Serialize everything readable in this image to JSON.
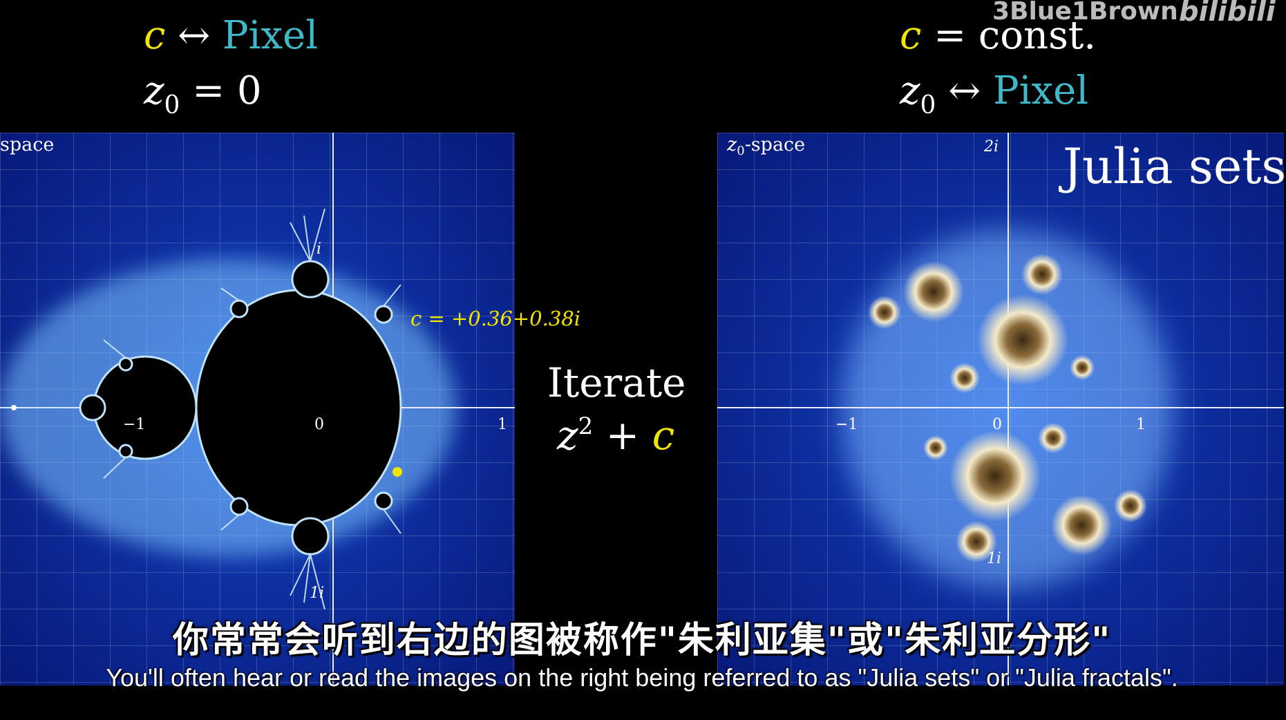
{
  "watermark": {
    "channel": "3Blue1Brown",
    "platform": "bilibili"
  },
  "left_header": {
    "c": "c",
    "arrow": "↔",
    "pixel": "Pixel",
    "z": "z",
    "z_sub": "0",
    "eq": "=",
    "zero": "0"
  },
  "right_header": {
    "c": "c",
    "eq": "=",
    "const": "const.",
    "z": "z",
    "z_sub": "0",
    "arrow": "↔",
    "pixel": "Pixel"
  },
  "left_panel": {
    "space_label": "space",
    "ticks": {
      "neg1": "−1",
      "zero": "0",
      "pos1": "1",
      "i": "i",
      "one_i": "1i"
    },
    "point_label": "c = +0.36+0.38i",
    "colors": {
      "set": "#000000",
      "glow": "#9fd0ff",
      "point": "#f2e600"
    }
  },
  "center": {
    "iterate": "Iterate",
    "z": "z",
    "exp": "2",
    "plus": "+",
    "c": "c"
  },
  "right_panel": {
    "space_label_z": "z",
    "space_label_sub": "0",
    "space_label_rest": "-space",
    "title": "Julia sets",
    "ticks": {
      "neg1": "−1",
      "zero": "0",
      "pos1": "1",
      "two_i": "2i",
      "one_i": "1i"
    },
    "colors": {
      "fractal": "#f5e9c8",
      "core": "#3a2a10"
    }
  },
  "subtitles": {
    "chinese": "你常常会听到右边的图被称作\"朱利亚集\"或\"朱利亚分形\"",
    "english": "You'll often hear or read the images on the right being referred to as \"Julia sets\" or \"Julia fractals\"."
  }
}
